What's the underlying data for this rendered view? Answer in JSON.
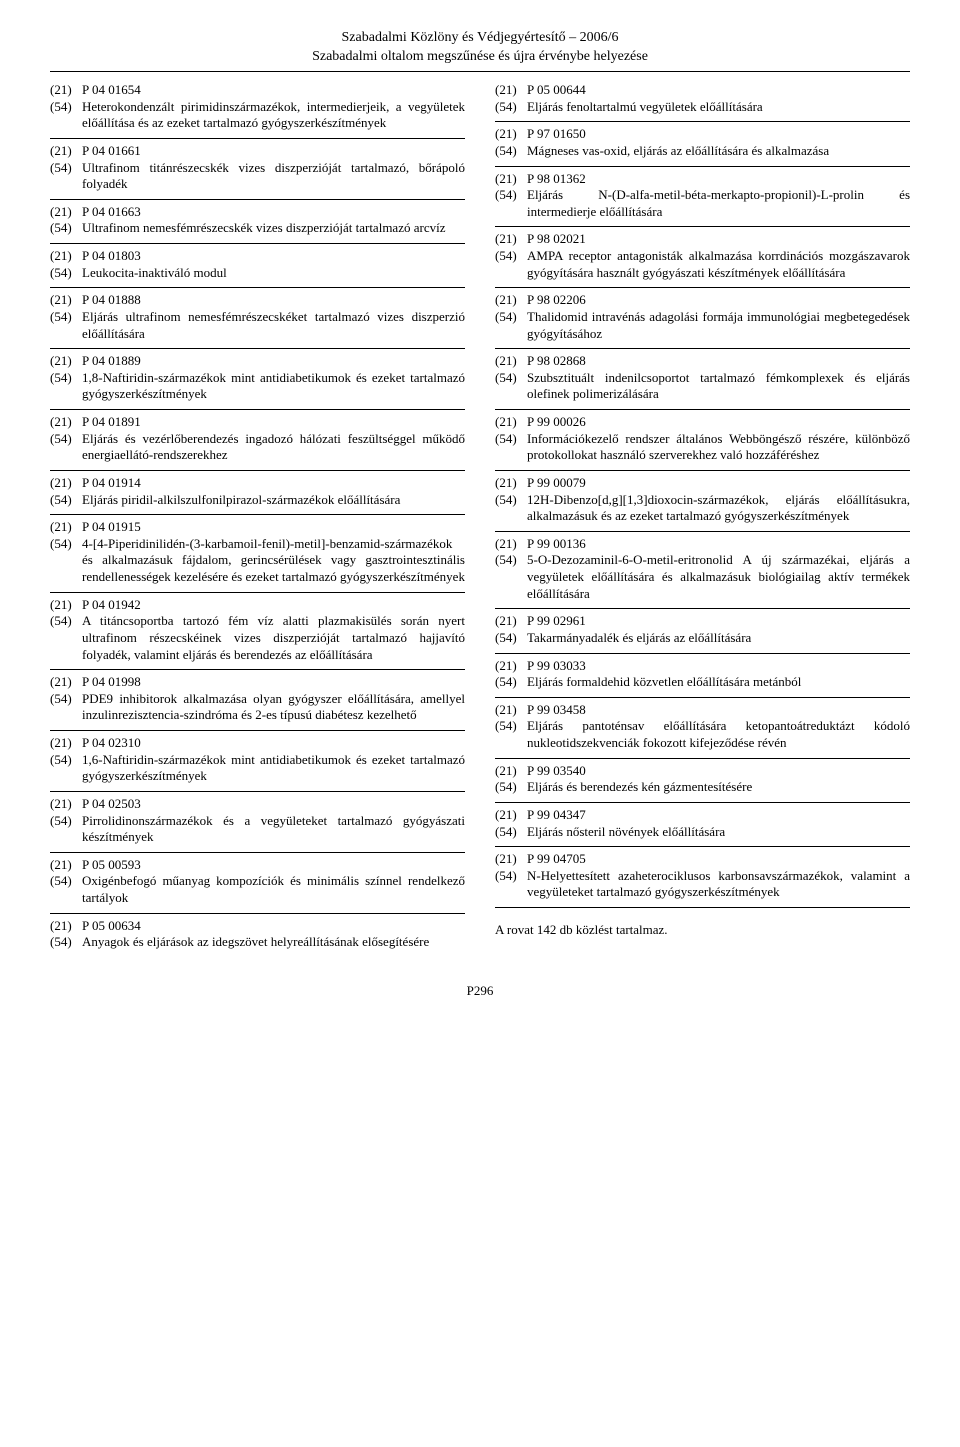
{
  "header": {
    "line1": "Szabadalmi Közlöny és Védjegyértesítő – 2006/6",
    "line2": "Szabadalmi oltalom megszűnése és újra érvénybe helyezése"
  },
  "left_entries": [
    {
      "c21": "(21)",
      "v21": "P 04 01654",
      "c54": "(54)",
      "v54": "Heterokondenzált pirimidinszármazékok, intermedierjeik, a vegyületek előállítása és az ezeket tartalmazó gyógyszerkészítmények"
    },
    {
      "c21": "(21)",
      "v21": "P 04 01661",
      "c54": "(54)",
      "v54": "Ultrafinom titánrészecskék vizes diszperzióját tartalmazó, bőrápoló folyadék"
    },
    {
      "c21": "(21)",
      "v21": "P 04 01663",
      "c54": "(54)",
      "v54": "Ultrafinom nemesfémrészecskék vizes diszperzióját tartalmazó arcvíz"
    },
    {
      "c21": "(21)",
      "v21": "P 04 01803",
      "c54": "(54)",
      "v54": "Leukocita-inaktiváló modul"
    },
    {
      "c21": "(21)",
      "v21": "P 04 01888",
      "c54": "(54)",
      "v54": "Eljárás ultrafinom nemesfémrészecskéket tartalmazó vizes diszperzió előállítására"
    },
    {
      "c21": "(21)",
      "v21": "P 04 01889",
      "c54": "(54)",
      "v54": "1,8-Naftiridin-származékok mint antidiabetikumok és ezeket tartalmazó gyógyszerkészítmények"
    },
    {
      "c21": "(21)",
      "v21": "P 04 01891",
      "c54": "(54)",
      "v54": "Eljárás és vezérlőberendezés ingadozó hálózati feszültséggel működő energiaellátó-rendszerekhez"
    },
    {
      "c21": "(21)",
      "v21": "P 04 01914",
      "c54": "(54)",
      "v54": "Eljárás piridil-alkilszulfonilpirazol-származékok előállítására"
    },
    {
      "c21": "(21)",
      "v21": "P 04 01915",
      "c54": "(54)",
      "v54": "4-[4-Piperidinilidén-(3-karbamoil-fenil)-metil]-benzamid-származékok és alkalmazásuk fájdalom, gerincsérülések vagy gasztrointesztinális rendellenességek kezelésére és ezeket tartalmazó gyógyszerkészítmények"
    },
    {
      "c21": "(21)",
      "v21": "P 04 01942",
      "c54": "(54)",
      "v54": "A titáncsoportba tartozó fém víz alatti plazmakisülés során nyert ultrafinom részecskéinek vizes diszperzióját tartalmazó hajjavító folyadék, valamint eljárás és berendezés az előállítására"
    },
    {
      "c21": "(21)",
      "v21": "P 04 01998",
      "c54": "(54)",
      "v54": "PDE9 inhibitorok alkalmazása olyan gyógyszer előállítására, amellyel inzulinrezisztencia-szindróma és 2-es típusú diabétesz kezelhető"
    },
    {
      "c21": "(21)",
      "v21": "P 04 02310",
      "c54": "(54)",
      "v54": "1,6-Naftiridin-származékok mint antidiabetikumok és ezeket tartalmazó gyógyszerkészítmények"
    },
    {
      "c21": "(21)",
      "v21": "P 04 02503",
      "c54": "(54)",
      "v54": "Pirrolidinonszármazékok és a vegyületeket tartalmazó gyógyászati készítmények"
    },
    {
      "c21": "(21)",
      "v21": "P 05 00593",
      "c54": "(54)",
      "v54": "Oxigénbefogó műanyag kompozíciók és minimális színnel rendelkező tartályok"
    },
    {
      "c21": "(21)",
      "v21": "P 05 00634",
      "c54": "(54)",
      "v54": "Anyagok és eljárások az idegszövet helyreállításának elősegítésére"
    }
  ],
  "right_entries": [
    {
      "c21": "(21)",
      "v21": "P 05 00644",
      "c54": "(54)",
      "v54": "Eljárás fenoltartalmú vegyületek előállítására"
    },
    {
      "c21": "(21)",
      "v21": "P 97 01650",
      "c54": "(54)",
      "v54": "Mágneses vas-oxid, eljárás az előállítására és alkalmazása"
    },
    {
      "c21": "(21)",
      "v21": "P 98 01362",
      "c54": "(54)",
      "v54": "Eljárás N-(D-alfa-metil-béta-merkapto-propionil)-L-prolin és intermedierje előállítására"
    },
    {
      "c21": "(21)",
      "v21": "P 98 02021",
      "c54": "(54)",
      "v54": "AMPA receptor antagonisták alkalmazása korrdinációs mozgászavarok gyógyítására használt gyógyászati készítmények előállítására"
    },
    {
      "c21": "(21)",
      "v21": "P 98 02206",
      "c54": "(54)",
      "v54": "Thalidomid intravénás adagolási formája immunológiai megbetegedések gyógyításához"
    },
    {
      "c21": "(21)",
      "v21": "P 98 02868",
      "c54": "(54)",
      "v54": "Szubsztituált indenilcsoportot tartalmazó fémkomplexek és eljárás olefinek polimerizálására"
    },
    {
      "c21": "(21)",
      "v21": "P 99 00026",
      "c54": "(54)",
      "v54": "Információkezelő rendszer általános Webböngésző részére, különböző protokollokat használó szerverekhez való hozzáféréshez"
    },
    {
      "c21": "(21)",
      "v21": "P 99 00079",
      "c54": "(54)",
      "v54": "12H-Dibenzo[d,g][1,3]dioxocin-származékok, eljárás előállításukra, alkalmazásuk és az ezeket tartalmazó gyógyszerkészítmények"
    },
    {
      "c21": "(21)",
      "v21": "P 99 00136",
      "c54": "(54)",
      "v54": "5-O-Dezozaminil-6-O-metil-eritronolid A új származékai, eljárás a vegyületek előállítására és alkalmazásuk biológiailag aktív termékek előállítására"
    },
    {
      "c21": "(21)",
      "v21": "P 99 02961",
      "c54": "(54)",
      "v54": "Takarmányadalék és eljárás az előállítására"
    },
    {
      "c21": "(21)",
      "v21": "P 99 03033",
      "c54": "(54)",
      "v54": "Eljárás formaldehid közvetlen előállítására metánból"
    },
    {
      "c21": "(21)",
      "v21": "P 99 03458",
      "c54": "(54)",
      "v54": "Eljárás pantoténsav előállítására ketopantoátreduktázt kódoló nukleotidszekvenciák fokozott kifejeződése révén"
    },
    {
      "c21": "(21)",
      "v21": "P 99 03540",
      "c54": "(54)",
      "v54": "Eljárás és berendezés kén gázmentesítésére"
    },
    {
      "c21": "(21)",
      "v21": "P 99 04347",
      "c54": "(54)",
      "v54": "Eljárás nősteril növények előállítására"
    },
    {
      "c21": "(21)",
      "v21": "P 99 04705",
      "c54": "(54)",
      "v54": "N-Helyettesített azaheterociklusos karbonsavszármazékok, valamint a vegyületeket tartalmazó gyógyszerkészítmények"
    }
  ],
  "footer_note": "A rovat 142 db közlést tartalmaz.",
  "page_number": "P296"
}
